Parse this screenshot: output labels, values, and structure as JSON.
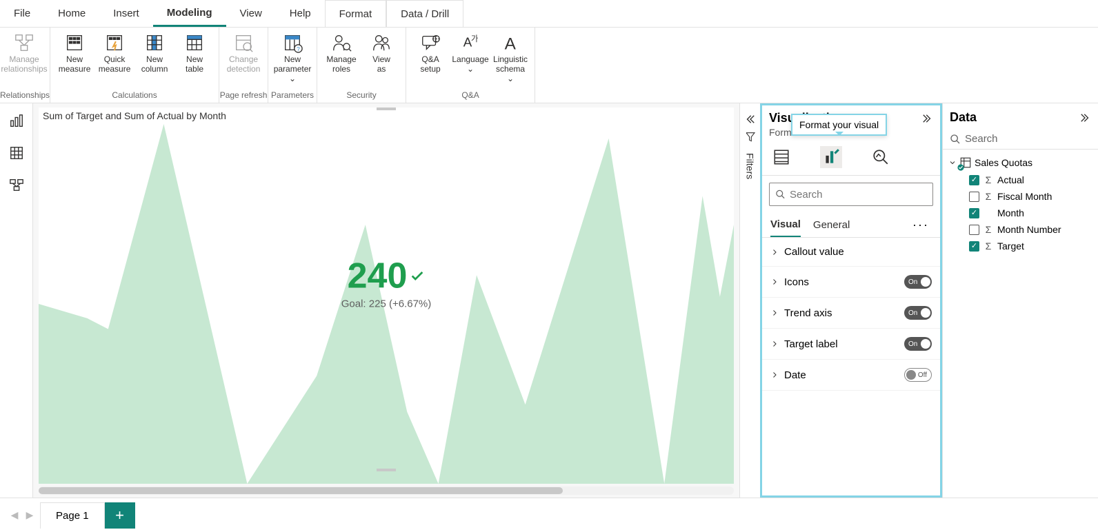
{
  "menu": {
    "tabs": [
      "File",
      "Home",
      "Insert",
      "Modeling",
      "View",
      "Help",
      "Format",
      "Data / Drill"
    ],
    "active": "Modeling",
    "contextual": [
      "Format",
      "Data / Drill"
    ]
  },
  "ribbon": {
    "groups": [
      {
        "label": "Relationships",
        "buttons": [
          {
            "id": "manage-relationships",
            "label": "Manage\nrelationships",
            "disabled": true
          }
        ]
      },
      {
        "label": "Calculations",
        "buttons": [
          {
            "id": "new-measure",
            "label": "New\nmeasure"
          },
          {
            "id": "quick-measure",
            "label": "Quick\nmeasure"
          },
          {
            "id": "new-column",
            "label": "New\ncolumn"
          },
          {
            "id": "new-table",
            "label": "New\ntable"
          }
        ]
      },
      {
        "label": "Page refresh",
        "buttons": [
          {
            "id": "change-detection",
            "label": "Change\ndetection",
            "disabled": true
          }
        ]
      },
      {
        "label": "Parameters",
        "buttons": [
          {
            "id": "new-parameter",
            "label": "New\nparameter ⌄"
          }
        ]
      },
      {
        "label": "Security",
        "buttons": [
          {
            "id": "manage-roles",
            "label": "Manage\nroles"
          },
          {
            "id": "view-as",
            "label": "View\nas"
          }
        ]
      },
      {
        "label": "Q&A",
        "buttons": [
          {
            "id": "qa-setup",
            "label": "Q&A\nsetup"
          },
          {
            "id": "language",
            "label": "Language\n⌄"
          },
          {
            "id": "linguistic-schema",
            "label": "Linguistic\nschema ⌄"
          }
        ]
      }
    ]
  },
  "kpi": {
    "title": "Sum of Target and Sum of Actual by Month",
    "value": "240",
    "goal_line": "Goal: 225 (+6.67%)",
    "value_color": "#1f9e4e",
    "area_color": "#c7e8d2",
    "background": "#ffffff",
    "trend_points": [
      {
        "x": 0,
        "y": 0.5
      },
      {
        "x": 0.07,
        "y": 0.46
      },
      {
        "x": 0.1,
        "y": 0.43
      },
      {
        "x": 0.18,
        "y": 1.0
      },
      {
        "x": 0.3,
        "y": 0.0
      },
      {
        "x": 0.4,
        "y": 0.3
      },
      {
        "x": 0.47,
        "y": 0.72
      },
      {
        "x": 0.53,
        "y": 0.2
      },
      {
        "x": 0.575,
        "y": 0.0
      },
      {
        "x": 0.63,
        "y": 0.58
      },
      {
        "x": 0.7,
        "y": 0.22
      },
      {
        "x": 0.82,
        "y": 0.96
      },
      {
        "x": 0.9,
        "y": 0.0
      },
      {
        "x": 0.955,
        "y": 0.8
      },
      {
        "x": 0.98,
        "y": 0.52
      },
      {
        "x": 1.0,
        "y": 0.72
      }
    ]
  },
  "filters_label": "Filters",
  "vis_pane": {
    "title": "Visualizations",
    "subtitle": "Format visual",
    "tooltip": "Format your visual",
    "search_placeholder": "Search",
    "subtabs": {
      "visual": "Visual",
      "general": "General",
      "active": "visual"
    },
    "cards": [
      {
        "id": "callout-value",
        "label": "Callout value",
        "toggle": null
      },
      {
        "id": "icons",
        "label": "Icons",
        "toggle": "On"
      },
      {
        "id": "trend-axis",
        "label": "Trend axis",
        "toggle": "On"
      },
      {
        "id": "target-label",
        "label": "Target label",
        "toggle": "On"
      },
      {
        "id": "date",
        "label": "Date",
        "toggle": "Off"
      }
    ]
  },
  "data_pane": {
    "title": "Data",
    "search_placeholder": "Search",
    "table": "Sales Quotas",
    "fields": [
      {
        "name": "Actual",
        "checked": true,
        "agg": true
      },
      {
        "name": "Fiscal Month",
        "checked": false,
        "agg": true
      },
      {
        "name": "Month",
        "checked": true,
        "agg": false
      },
      {
        "name": "Month Number",
        "checked": false,
        "agg": true
      },
      {
        "name": "Target",
        "checked": true,
        "agg": true
      }
    ]
  },
  "pagebar": {
    "page": "Page 1"
  },
  "colors": {
    "accent": "#118478",
    "highlight": "#84d4e6"
  }
}
